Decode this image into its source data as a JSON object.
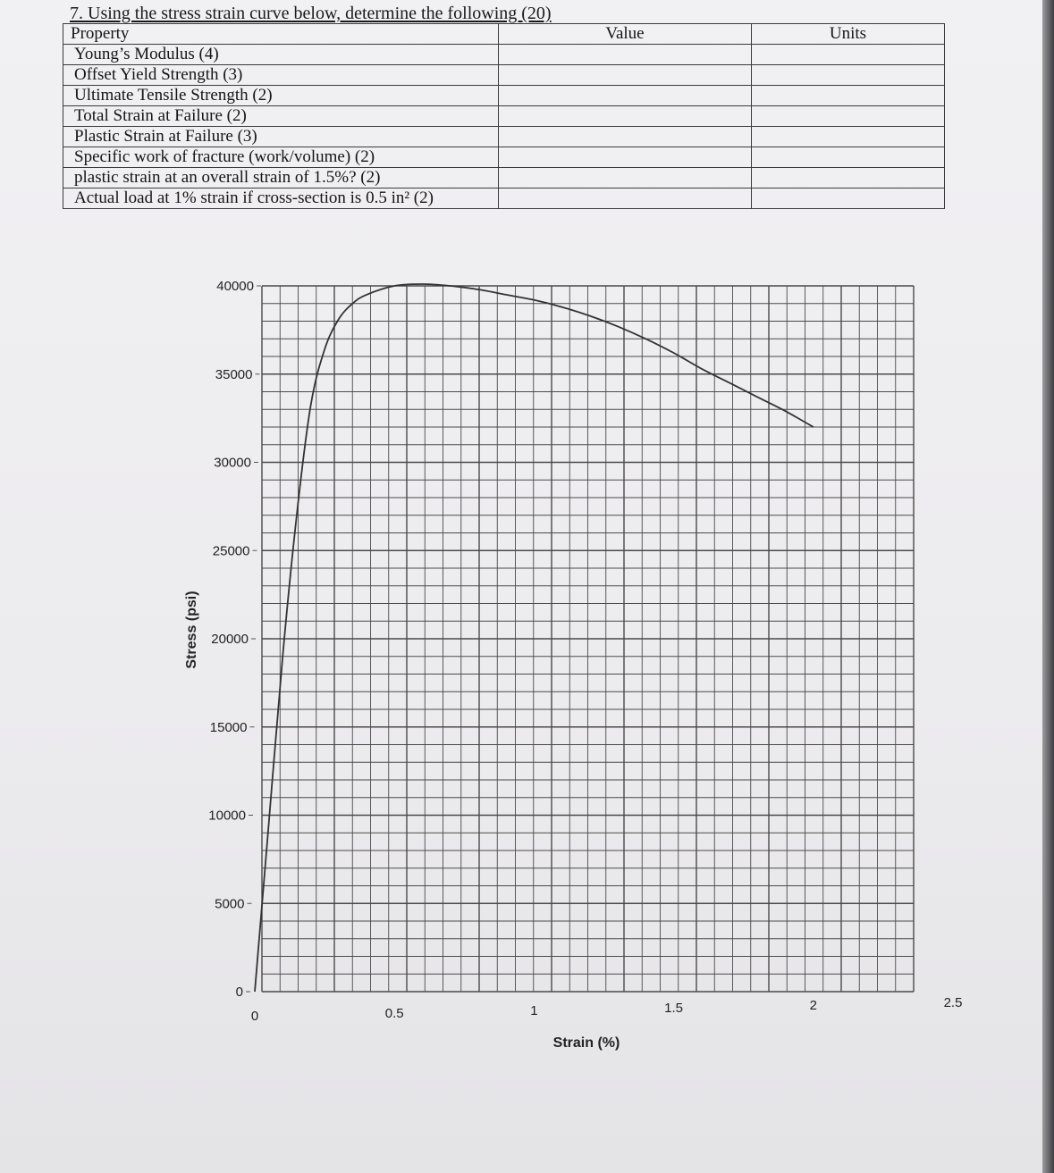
{
  "question": "7. Using the stress strain curve below, determine the following (20)",
  "table": {
    "headers": [
      "Property",
      "Value",
      "Units"
    ],
    "rows": [
      "Young’s Modulus (4)",
      "Offset Yield Strength (3)",
      "Ultimate Tensile Strength (2)",
      "Total Strain at Failure (2)",
      "Plastic Strain at Failure (3)",
      "Specific work of fracture (work/volume) (2)",
      "plastic strain at an overall strain of 1.5%? (2)",
      "Actual load at 1% strain if cross-section is 0.5 in² (2)"
    ]
  },
  "chart_data": {
    "type": "line",
    "xlabel": "Strain (%)",
    "ylabel": "Stress (psi)",
    "xlim": [
      0,
      2.5
    ],
    "ylim": [
      0,
      40000
    ],
    "x_ticks": [
      "0",
      "0.5",
      "1",
      "1.5",
      "2",
      "2.5"
    ],
    "y_ticks": [
      "40000",
      "35000",
      "30000",
      "25000",
      "20000",
      "15000",
      "10000",
      "5000",
      "0"
    ],
    "grid": true,
    "series": [
      {
        "x": [
          0,
          0.05,
          0.1,
          0.15,
          0.2,
          0.25,
          0.3,
          0.35,
          0.4,
          0.5,
          0.6,
          0.7,
          0.8,
          0.9,
          1.0,
          1.1,
          1.2,
          1.3,
          1.4,
          1.5,
          1.6,
          1.7,
          1.8,
          1.9,
          2.0
        ],
        "y": [
          0,
          9500,
          19000,
          27000,
          33200,
          36400,
          38100,
          39000,
          39500,
          40000,
          40100,
          40000,
          39800,
          39500,
          39200,
          38800,
          38300,
          37700,
          37000,
          36200,
          35300,
          34500,
          33700,
          32900,
          32000
        ]
      }
    ]
  }
}
